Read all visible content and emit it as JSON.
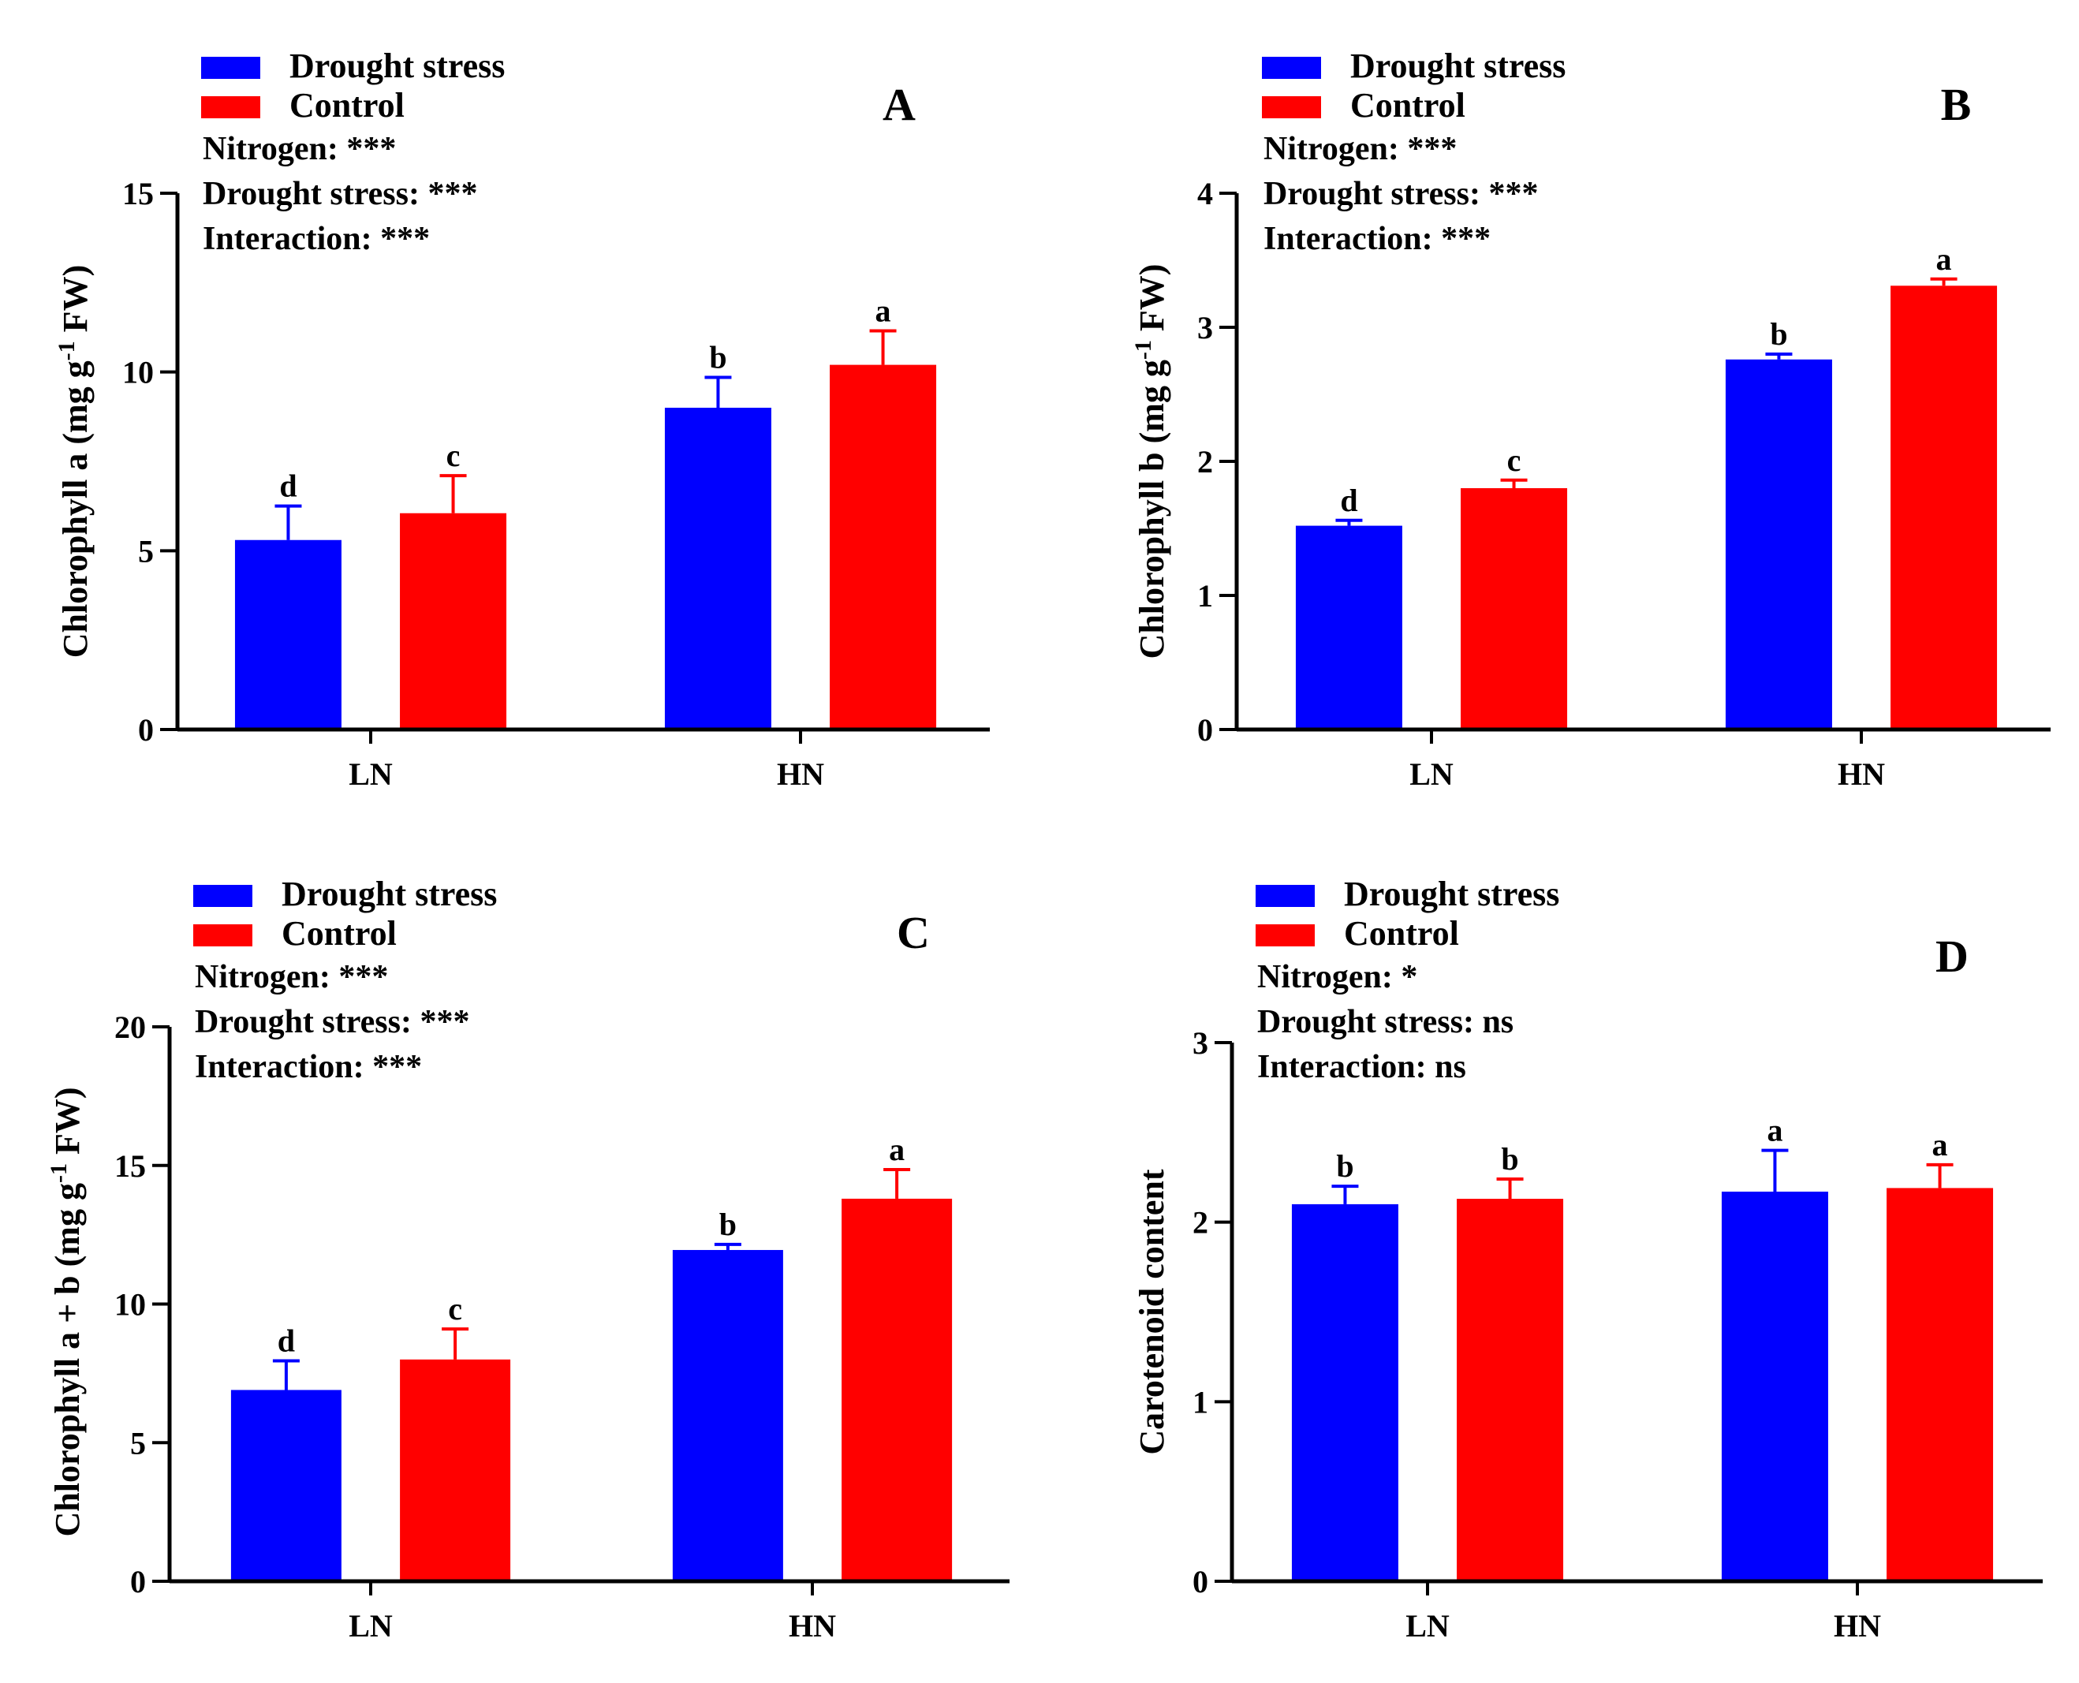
{
  "figure": {
    "colors": {
      "drought": "#0000ff",
      "control": "#ff0000",
      "axis": "#000000"
    }
  },
  "chart_data": [
    {
      "type": "bar",
      "panel": "A",
      "legend": [
        "Drought stress",
        "Control"
      ],
      "stats": [
        "Nitrogen: ***",
        "Drought stress: ***",
        "Interaction: ***"
      ],
      "ylabel_parts": [
        "Chlorophyll a (mg g",
        "-1",
        " FW)"
      ],
      "categories": [
        "LN",
        "HN"
      ],
      "ylim": [
        0,
        15
      ],
      "yticks": [
        0,
        5,
        10,
        15
      ],
      "series": [
        {
          "name": "Drought stress",
          "values": [
            5.3,
            9.0
          ],
          "errors": [
            0.95,
            0.85
          ],
          "letters": [
            "d",
            "b"
          ]
        },
        {
          "name": "Control",
          "values": [
            6.05,
            10.2
          ],
          "errors": [
            1.05,
            0.95
          ],
          "letters": [
            "c",
            "a"
          ]
        }
      ]
    },
    {
      "type": "bar",
      "panel": "B",
      "legend": [
        "Drought stress",
        "Control"
      ],
      "stats": [
        "Nitrogen: ***",
        "Drought stress: ***",
        "Interaction: ***"
      ],
      "ylabel_parts": [
        "Chlorophyll b (mg g",
        "-1",
        " FW)"
      ],
      "categories": [
        "LN",
        "HN"
      ],
      "ylim": [
        0,
        4
      ],
      "yticks": [
        0,
        1,
        2,
        3,
        4
      ],
      "series": [
        {
          "name": "Drought stress",
          "values": [
            1.52,
            2.76
          ],
          "errors": [
            0.04,
            0.04
          ],
          "letters": [
            "d",
            "b"
          ]
        },
        {
          "name": "Control",
          "values": [
            1.8,
            3.31
          ],
          "errors": [
            0.06,
            0.05
          ],
          "letters": [
            "c",
            "a"
          ]
        }
      ]
    },
    {
      "type": "bar",
      "panel": "C",
      "legend": [
        "Drought stress",
        "Control"
      ],
      "stats": [
        "Nitrogen: ***",
        "Drought stress: ***",
        "Interaction: ***"
      ],
      "ylabel_parts": [
        "Chlorophyll a + b (mg g",
        "-1",
        " FW)"
      ],
      "categories": [
        "LN",
        "HN"
      ],
      "ylim": [
        0,
        20
      ],
      "yticks": [
        0,
        5,
        10,
        15,
        20
      ],
      "series": [
        {
          "name": "Drought stress",
          "values": [
            6.9,
            11.95
          ],
          "errors": [
            1.05,
            0.2
          ],
          "letters": [
            "d",
            "b"
          ]
        },
        {
          "name": "Control",
          "values": [
            8.0,
            13.8
          ],
          "errors": [
            1.1,
            1.05
          ],
          "letters": [
            "c",
            "a"
          ]
        }
      ]
    },
    {
      "type": "bar",
      "panel": "D",
      "legend": [
        "Drought stress",
        "Control"
      ],
      "stats": [
        "Nitrogen: *",
        "Drought stress: ns",
        "Interaction: ns"
      ],
      "ylabel_parts": [
        "Carotenoid content"
      ],
      "categories": [
        "LN",
        "HN"
      ],
      "ylim": [
        0,
        3
      ],
      "yticks": [
        0,
        1,
        2,
        3
      ],
      "series": [
        {
          "name": "Drought stress",
          "values": [
            2.1,
            2.17
          ],
          "errors": [
            0.1,
            0.23
          ],
          "letters": [
            "b",
            "a"
          ]
        },
        {
          "name": "Control",
          "values": [
            2.13,
            2.19
          ],
          "errors": [
            0.11,
            0.13
          ],
          "letters": [
            "b",
            "a"
          ]
        }
      ]
    }
  ]
}
